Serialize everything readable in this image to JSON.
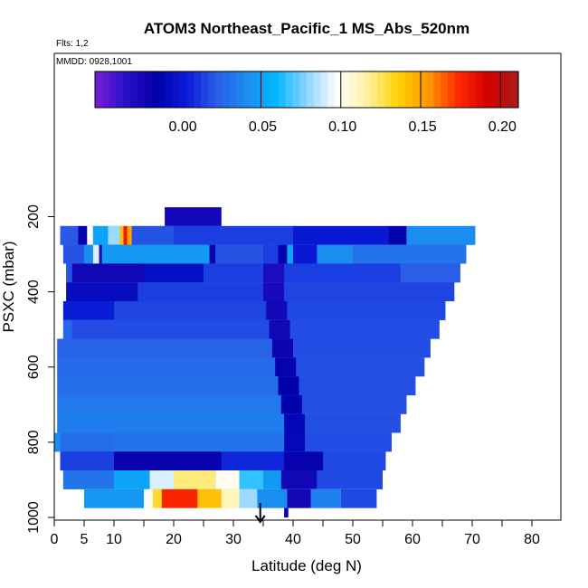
{
  "title": "ATOM3 Northeast_Pacific_1 MS_Abs_520nm",
  "flights_note": "Flts: 1,2",
  "date_note": "MMDD: 0928,1001",
  "colors": {
    "stops": [
      "#7a1fd6",
      "#2a10c8",
      "#0000a8",
      "#0a1ad8",
      "#2a5ce6",
      "#1b8cf0",
      "#00b8ff",
      "#8fd4ff",
      "#ffffff",
      "#fff1a0",
      "#ffd20a",
      "#ff9a00",
      "#ff2a00",
      "#d40000",
      "#a61c1c"
    ]
  },
  "chart_data": {
    "type": "heatmap",
    "title": "ATOM3 Northeast_Pacific_1 MS_Abs_520nm",
    "xlabel": "Latitude (deg N)",
    "ylabel": "PSXC (mbar)",
    "xlim": [
      0,
      85
    ],
    "ylim": [
      1000,
      0
    ],
    "x_ticks": [
      0,
      5,
      10,
      20,
      30,
      40,
      50,
      60,
      70,
      80
    ],
    "x_minor_ticks": [
      15,
      25,
      35,
      45,
      55,
      65,
      75,
      85
    ],
    "y_ticks": [
      200,
      400,
      600,
      800,
      1000
    ],
    "colorbar": {
      "min": -0.055,
      "max": 0.21,
      "ticks": [
        0.0,
        0.05,
        0.1,
        0.15,
        0.2
      ],
      "tick_labels": [
        "0.00",
        "0.05",
        "0.10",
        "0.15",
        "0.20"
      ],
      "separators": [
        0.05,
        0.1,
        0.15,
        0.2
      ]
    },
    "arrow_latitude": 34.5,
    "background_value": 0.018,
    "bands": [
      {
        "p_top": 175,
        "p_bot": 225,
        "x0": 18.5,
        "x1": 28,
        "v": -0.025,
        "segments": []
      },
      {
        "p_top": 225,
        "p_bot": 275,
        "x0": 1,
        "x1": 70.5,
        "v": 0.015,
        "segments": [
          {
            "x0": 1,
            "x1": 4,
            "v": 0.02
          },
          {
            "x0": 4,
            "x1": 5.5,
            "v": -0.02
          },
          {
            "x0": 5.5,
            "x1": 6.5,
            "v": 0.1
          },
          {
            "x0": 6.5,
            "x1": 9,
            "v": 0.05
          },
          {
            "x0": 9,
            "x1": 11,
            "v": 0.08
          },
          {
            "x0": 11,
            "x1": 11.6,
            "v": 0.14
          },
          {
            "x0": 11.6,
            "x1": 12.2,
            "v": 0.18
          },
          {
            "x0": 12.2,
            "x1": 13,
            "v": 0.15
          },
          {
            "x0": 13,
            "x1": 20,
            "v": 0.018
          },
          {
            "x0": 20,
            "x1": 40,
            "v": 0.012
          },
          {
            "x0": 40,
            "x1": 56,
            "v": 0.0
          },
          {
            "x0": 56,
            "x1": 59,
            "v": -0.015
          },
          {
            "x0": 59,
            "x1": 70.5,
            "v": 0.04
          }
        ]
      },
      {
        "p_top": 275,
        "p_bot": 325,
        "x0": 1.5,
        "x1": 69,
        "v": 0.02,
        "segments": [
          {
            "x0": 1.5,
            "x1": 5,
            "v": 0.018
          },
          {
            "x0": 5,
            "x1": 6.5,
            "v": 0.04
          },
          {
            "x0": 6.5,
            "x1": 7.5,
            "v": 0.09
          },
          {
            "x0": 7.5,
            "x1": 8,
            "v": -0.03
          },
          {
            "x0": 8,
            "x1": 26,
            "v": 0.045
          },
          {
            "x0": 26,
            "x1": 27,
            "v": -0.02
          },
          {
            "x0": 27,
            "x1": 35,
            "v": 0.018
          },
          {
            "x0": 35,
            "x1": 37.5,
            "v": 0.012
          },
          {
            "x0": 37.5,
            "x1": 39,
            "v": -0.015
          },
          {
            "x0": 39,
            "x1": 40,
            "v": 0.05
          },
          {
            "x0": 40,
            "x1": 44,
            "v": 0.0
          },
          {
            "x0": 44,
            "x1": 50,
            "v": 0.04
          },
          {
            "x0": 50,
            "x1": 69,
            "v": 0.03
          }
        ]
      },
      {
        "p_top": 325,
        "p_bot": 375,
        "x0": 2,
        "x1": 68,
        "v": 0.012,
        "segments": [
          {
            "x0": 2,
            "x1": 3,
            "v": 0.018
          },
          {
            "x0": 3,
            "x1": 15,
            "v": -0.025
          },
          {
            "x0": 15,
            "x1": 25,
            "v": -0.005
          },
          {
            "x0": 25,
            "x1": 35,
            "v": 0.012
          },
          {
            "x0": 35,
            "x1": 38.5,
            "v": -0.03
          },
          {
            "x0": 38.5,
            "x1": 58,
            "v": 0.012
          },
          {
            "x0": 58,
            "x1": 68,
            "v": 0.022
          }
        ]
      },
      {
        "p_top": 375,
        "p_bot": 425,
        "x0": 2,
        "x1": 67,
        "v": 0.013,
        "segments": [
          {
            "x0": 2,
            "x1": 14,
            "v": -0.008
          },
          {
            "x0": 14,
            "x1": 35,
            "v": 0.012
          },
          {
            "x0": 35,
            "x1": 38.5,
            "v": -0.028
          },
          {
            "x0": 38.5,
            "x1": 67,
            "v": 0.014
          }
        ]
      },
      {
        "p_top": 425,
        "p_bot": 475,
        "x0": 1.5,
        "x1": 65.5,
        "v": 0.014,
        "segments": [
          {
            "x0": 1.5,
            "x1": 10,
            "v": 0.002
          },
          {
            "x0": 10,
            "x1": 35.5,
            "v": 0.014
          },
          {
            "x0": 35.5,
            "x1": 39,
            "v": -0.026
          },
          {
            "x0": 39,
            "x1": 65.5,
            "v": 0.015
          }
        ]
      },
      {
        "p_top": 475,
        "p_bot": 525,
        "x0": 1.5,
        "x1": 64.5,
        "v": 0.016,
        "segments": [
          {
            "x0": 1.5,
            "x1": 3,
            "v": 0.025
          },
          {
            "x0": 3,
            "x1": 36,
            "v": 0.016
          },
          {
            "x0": 36,
            "x1": 39.5,
            "v": -0.025
          },
          {
            "x0": 39.5,
            "x1": 64.5,
            "v": 0.016
          }
        ]
      },
      {
        "p_top": 525,
        "p_bot": 575,
        "x0": 0.5,
        "x1": 63,
        "v": 0.02,
        "segments": [
          {
            "x0": 0.5,
            "x1": 36.5,
            "v": 0.024
          },
          {
            "x0": 36.5,
            "x1": 40,
            "v": -0.022
          },
          {
            "x0": 40,
            "x1": 63,
            "v": 0.016
          }
        ]
      },
      {
        "p_top": 575,
        "p_bot": 625,
        "x0": 0.5,
        "x1": 62,
        "v": 0.022,
        "segments": [
          {
            "x0": 0.5,
            "x1": 37,
            "v": 0.026
          },
          {
            "x0": 37,
            "x1": 40.5,
            "v": -0.02
          },
          {
            "x0": 40.5,
            "x1": 62,
            "v": 0.017
          }
        ]
      },
      {
        "p_top": 625,
        "p_bot": 675,
        "x0": 0.5,
        "x1": 60.5,
        "v": 0.024,
        "segments": [
          {
            "x0": 0.5,
            "x1": 37.5,
            "v": 0.028
          },
          {
            "x0": 37.5,
            "x1": 41,
            "v": -0.018
          },
          {
            "x0": 41,
            "x1": 60.5,
            "v": 0.017
          }
        ]
      },
      {
        "p_top": 675,
        "p_bot": 725,
        "x0": 0.5,
        "x1": 59,
        "v": 0.025,
        "segments": [
          {
            "x0": 0.5,
            "x1": 38,
            "v": 0.032
          },
          {
            "x0": 38,
            "x1": 41.5,
            "v": -0.015
          },
          {
            "x0": 41.5,
            "x1": 59,
            "v": 0.017
          }
        ]
      },
      {
        "p_top": 725,
        "p_bot": 775,
        "x0": 0.5,
        "x1": 58,
        "v": 0.026,
        "segments": [
          {
            "x0": 0.5,
            "x1": 38.5,
            "v": 0.034
          },
          {
            "x0": 38.5,
            "x1": 42,
            "v": -0.012
          },
          {
            "x0": 42,
            "x1": 58,
            "v": 0.017
          }
        ]
      },
      {
        "p_top": 775,
        "p_bot": 825,
        "x0": 0,
        "x1": 56.5,
        "v": 0.024,
        "segments": [
          {
            "x0": 0,
            "x1": 1,
            "v": 0.04
          },
          {
            "x0": 1,
            "x1": 10,
            "v": 0.028
          },
          {
            "x0": 10,
            "x1": 38.5,
            "v": 0.03
          },
          {
            "x0": 38.5,
            "x1": 42,
            "v": -0.01
          },
          {
            "x0": 42,
            "x1": 56.5,
            "v": 0.016
          }
        ]
      },
      {
        "p_top": 825,
        "p_bot": 875,
        "x0": 1,
        "x1": 55.5,
        "v": 0.01,
        "segments": [
          {
            "x0": 1,
            "x1": 10,
            "v": 0.012
          },
          {
            "x0": 10,
            "x1": 28,
            "v": -0.02
          },
          {
            "x0": 28,
            "x1": 38.5,
            "v": 0.005
          },
          {
            "x0": 38.5,
            "x1": 45,
            "v": -0.02
          },
          {
            "x0": 45,
            "x1": 55.5,
            "v": 0.015
          }
        ]
      },
      {
        "p_top": 875,
        "p_bot": 925,
        "x0": 1.5,
        "x1": 55,
        "v": 0.06,
        "segments": [
          {
            "x0": 1.5,
            "x1": 10,
            "v": 0.03
          },
          {
            "x0": 10,
            "x1": 16,
            "v": 0.05
          },
          {
            "x0": 16,
            "x1": 20,
            "v": 0.09
          },
          {
            "x0": 20,
            "x1": 27,
            "v": 0.12
          },
          {
            "x0": 27,
            "x1": 31,
            "v": 0.1
          },
          {
            "x0": 31,
            "x1": 35,
            "v": 0.065
          },
          {
            "x0": 35,
            "x1": 38,
            "v": 0.045
          },
          {
            "x0": 38,
            "x1": 44,
            "v": -0.025
          },
          {
            "x0": 44,
            "x1": 55,
            "v": 0.015
          }
        ]
      },
      {
        "p_top": 925,
        "p_bot": 975,
        "x0": 5,
        "x1": 54,
        "v": 0.08,
        "segments": [
          {
            "x0": 5,
            "x1": 15,
            "v": 0.045
          },
          {
            "x0": 15,
            "x1": 16.5,
            "v": 0.1
          },
          {
            "x0": 16.5,
            "x1": 18,
            "v": 0.13
          },
          {
            "x0": 18,
            "x1": 24,
            "v": 0.175
          },
          {
            "x0": 24,
            "x1": 28,
            "v": 0.14
          },
          {
            "x0": 28,
            "x1": 31,
            "v": 0.11
          },
          {
            "x0": 31,
            "x1": 34,
            "v": 0.08
          },
          {
            "x0": 34,
            "x1": 39,
            "v": 0.04
          },
          {
            "x0": 39,
            "x1": 43,
            "v": -0.025
          },
          {
            "x0": 43,
            "x1": 48,
            "v": 0.035
          },
          {
            "x0": 48,
            "x1": 54,
            "v": 0.015
          }
        ]
      },
      {
        "p_top": 975,
        "p_bot": 1000,
        "x0": 38.5,
        "x1": 39.2,
        "v": -0.02,
        "segments": []
      }
    ]
  }
}
